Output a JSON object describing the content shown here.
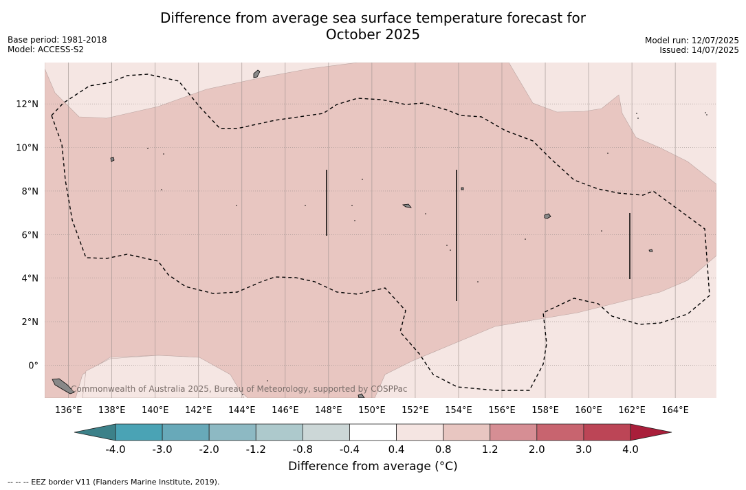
{
  "title_line1": "Difference from average sea surface temperature forecast for",
  "title_line2": "October 2025",
  "base_period": "Base period: 1981-2018",
  "model": "Model: ACCESS-S2",
  "model_run": "Model run: 12/07/2025",
  "issued": "Issued: 14/07/2025",
  "attribution": "Commonwealth of Australia 2025, Bureau of Meteorology, supported by COSPPac",
  "footnote": "--  --  -- EEZ border V11 (Flanders Marine Institute, 2019).",
  "map": {
    "lon_ticks": [
      "136°E",
      "138°E",
      "140°E",
      "142°E",
      "144°E",
      "146°E",
      "148°E",
      "150°E",
      "152°E",
      "154°E",
      "156°E",
      "158°E",
      "160°E",
      "162°E",
      "164°E"
    ],
    "lat_ticks": [
      "12°N",
      "10°N",
      "8°N",
      "6°N",
      "4°N",
      "2°N",
      "0°"
    ],
    "lon_range": [
      134.9,
      165.9
    ],
    "lat_range": [
      -1.5,
      13.9
    ],
    "grid": true
  },
  "colorbar": {
    "label": "Difference from average ($^\\circ$C)",
    "label_display": "Difference from average (°C)",
    "tick_labels": [
      "-4.0",
      "-3.0",
      "-2.0",
      "-1.2",
      "-0.8",
      "-0.4",
      "0.4",
      "0.8",
      "1.2",
      "2.0",
      "3.0",
      "4.0"
    ],
    "colors": [
      "#4aa3b5",
      "#68a9b9",
      "#8db9c3",
      "#adc9cc",
      "#ccd7d7",
      "#ffffff",
      "#f5e5e2",
      "#e8c6c1",
      "#d68e94",
      "#c8646f",
      "#bc4556"
    ],
    "extend_low_color": "#3c8189",
    "extend_high_color": "#a91e3a"
  },
  "colors": {
    "fill_light": "#f5e6e3",
    "fill_mid": "#e8c6c1"
  }
}
